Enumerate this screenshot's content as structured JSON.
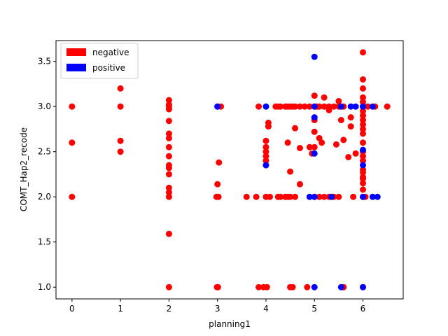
{
  "chart_data": {
    "type": "scatter",
    "title": "",
    "xlabel": "planning1",
    "ylabel": "COMT_Hap2_recode",
    "xlim": [
      -0.33,
      6.83
    ],
    "ylim": [
      0.87,
      3.73
    ],
    "xticks": [
      0,
      1,
      2,
      3,
      4,
      5,
      6
    ],
    "yticks": [
      1.0,
      1.5,
      2.0,
      2.5,
      3.0,
      3.5
    ],
    "ytick_labels": [
      "1.0",
      "1.5",
      "2.0",
      "2.5",
      "3.0",
      "3.5"
    ],
    "grid": false,
    "legend": {
      "position": "top-left"
    },
    "series": [
      {
        "name": "negative",
        "color": "#ff0000",
        "points": [
          [
            0,
            3.0
          ],
          [
            0,
            2.6
          ],
          [
            0,
            2.0
          ],
          [
            1,
            3.2
          ],
          [
            1,
            3.0
          ],
          [
            1,
            2.62
          ],
          [
            1,
            2.5
          ],
          [
            2,
            3.07
          ],
          [
            2,
            3.02
          ],
          [
            2,
            3.0
          ],
          [
            2,
            2.97
          ],
          [
            2,
            2.84
          ],
          [
            2,
            2.7
          ],
          [
            2,
            2.65
          ],
          [
            2,
            2.55
          ],
          [
            2,
            2.45
          ],
          [
            2,
            2.35
          ],
          [
            2,
            2.32
          ],
          [
            2,
            2.25
          ],
          [
            2,
            2.1
          ],
          [
            2,
            2.05
          ],
          [
            2,
            2.0
          ],
          [
            2,
            1.59
          ],
          [
            2,
            1.0
          ],
          [
            3,
            3.0
          ],
          [
            3.07,
            3.0
          ],
          [
            3.03,
            2.38
          ],
          [
            3.0,
            2.14
          ],
          [
            2.98,
            2.0
          ],
          [
            3.02,
            2.0
          ],
          [
            2.99,
            1.0
          ],
          [
            3.01,
            1.0
          ],
          [
            3.6,
            2.0
          ],
          [
            3.8,
            2.0
          ],
          [
            3.85,
            3.0
          ],
          [
            3.85,
            1.0
          ],
          [
            3.95,
            1.0
          ],
          [
            4.02,
            1.0
          ],
          [
            4.0,
            2.0
          ],
          [
            4.08,
            2.0
          ],
          [
            4.0,
            2.62
          ],
          [
            4.0,
            2.55
          ],
          [
            4.0,
            2.5
          ],
          [
            4.0,
            2.45
          ],
          [
            4.0,
            2.4
          ],
          [
            4.05,
            2.82
          ],
          [
            4.05,
            2.78
          ],
          [
            4.25,
            2.0
          ],
          [
            4.3,
            2.0
          ],
          [
            4.4,
            2.0
          ],
          [
            4.45,
            2.0
          ],
          [
            4.5,
            2.0
          ],
          [
            4.2,
            3.0
          ],
          [
            4.25,
            3.0
          ],
          [
            4.3,
            3.0
          ],
          [
            4.4,
            3.0
          ],
          [
            4.45,
            3.0
          ],
          [
            4.5,
            3.0
          ],
          [
            4.55,
            3.0
          ],
          [
            4.6,
            3.0
          ],
          [
            4.7,
            3.0
          ],
          [
            4.8,
            3.0
          ],
          [
            4.45,
            2.6
          ],
          [
            4.5,
            2.28
          ],
          [
            4.6,
            2.76
          ],
          [
            4.7,
            2.54
          ],
          [
            4.7,
            2.14
          ],
          [
            4.6,
            2.0
          ],
          [
            4.5,
            1.0
          ],
          [
            4.55,
            1.0
          ],
          [
            4.85,
            1.0
          ],
          [
            4.9,
            3.0
          ],
          [
            5.0,
            3.0
          ],
          [
            5.05,
            3.0
          ],
          [
            5.1,
            3.0
          ],
          [
            5.2,
            3.0
          ],
          [
            5.3,
            3.0
          ],
          [
            5.4,
            3.0
          ],
          [
            5.5,
            3.0
          ],
          [
            5.6,
            3.0
          ],
          [
            5.0,
            3.12
          ],
          [
            5.2,
            3.1
          ],
          [
            5.3,
            2.96
          ],
          [
            5.5,
            3.06
          ],
          [
            5.0,
            2.85
          ],
          [
            5.0,
            2.72
          ],
          [
            5.1,
            2.65
          ],
          [
            5.15,
            2.6
          ],
          [
            4.9,
            2.55
          ],
          [
            5.0,
            2.55
          ],
          [
            4.95,
            2.48
          ],
          [
            5.45,
            2.58
          ],
          [
            5.6,
            2.63
          ],
          [
            5.55,
            2.85
          ],
          [
            5.7,
            2.44
          ],
          [
            5.75,
            2.88
          ],
          [
            5.75,
            2.78
          ],
          [
            5.85,
            2.48
          ],
          [
            5.1,
            2.0
          ],
          [
            5.2,
            2.0
          ],
          [
            5.3,
            2.0
          ],
          [
            5.4,
            2.0
          ],
          [
            5.5,
            2.0
          ],
          [
            5.8,
            2.0
          ],
          [
            5.0,
            2.0
          ],
          [
            5.6,
            1.0
          ],
          [
            6.0,
            3.6
          ],
          [
            6.0,
            3.3
          ],
          [
            6.0,
            3.2
          ],
          [
            6.0,
            3.1
          ],
          [
            6.0,
            3.05
          ],
          [
            6.0,
            3.0
          ],
          [
            6.0,
            2.95
          ],
          [
            6.0,
            2.9
          ],
          [
            6.0,
            2.85
          ],
          [
            6.0,
            2.8
          ],
          [
            6.0,
            2.75
          ],
          [
            6.0,
            2.7
          ],
          [
            6.0,
            2.6
          ],
          [
            6.0,
            2.5
          ],
          [
            6.0,
            2.45
          ],
          [
            6.0,
            2.4
          ],
          [
            6.0,
            2.3
          ],
          [
            6.0,
            2.27
          ],
          [
            6.0,
            2.22
          ],
          [
            6.0,
            2.2
          ],
          [
            6.0,
            2.15
          ],
          [
            6.0,
            2.08
          ],
          [
            6.0,
            2.0
          ],
          [
            6.0,
            1.0
          ],
          [
            6.1,
            3.0
          ],
          [
            6.25,
            3.0
          ],
          [
            6.5,
            3.0
          ],
          [
            6.05,
            2.0
          ]
        ]
      },
      {
        "name": "positive",
        "color": "#0000ff",
        "points": [
          [
            3.0,
            3.0
          ],
          [
            4.0,
            3.0
          ],
          [
            4.0,
            2.35
          ],
          [
            4.9,
            2.0
          ],
          [
            5.0,
            2.0
          ],
          [
            5.0,
            3.0
          ],
          [
            5.0,
            2.88
          ],
          [
            5.0,
            2.48
          ],
          [
            5.0,
            3.55
          ],
          [
            5.0,
            1.0
          ],
          [
            5.35,
            2.0
          ],
          [
            5.55,
            1.0
          ],
          [
            5.55,
            3.0
          ],
          [
            5.75,
            3.0
          ],
          [
            5.85,
            3.0
          ],
          [
            6.0,
            3.0
          ],
          [
            6.0,
            2.52
          ],
          [
            6.0,
            2.35
          ],
          [
            6.0,
            2.0
          ],
          [
            6.0,
            1.0
          ],
          [
            6.2,
            3.0
          ],
          [
            6.2,
            2.0
          ],
          [
            6.3,
            2.0
          ]
        ]
      }
    ]
  }
}
